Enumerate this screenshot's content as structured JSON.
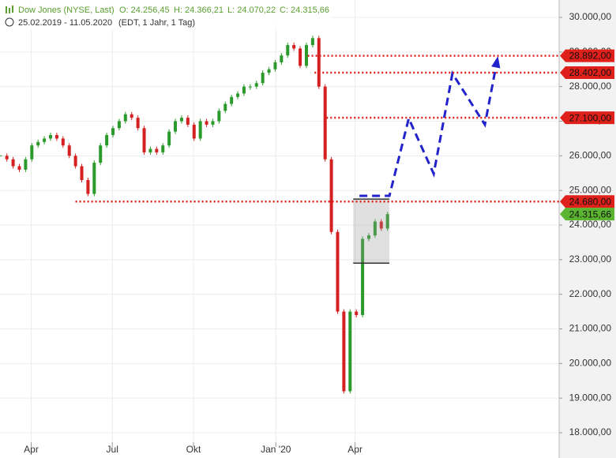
{
  "chart_data": {
    "type": "candlestick",
    "title": "Dow Jones (NYSE, Last)",
    "ohlc_text": [
      "O: 24.256,45",
      "H: 24.366,21",
      "L: 24.070,22",
      "C: 24.315,66"
    ],
    "subtitle": "25.02.2019 - 11.05.2020",
    "subtitle_note": "(EDT, 1 Jahr, 1 Tag)",
    "closes": [
      26000,
      25900,
      25700,
      25600,
      25900,
      26300,
      26400,
      26500,
      26600,
      26500,
      26300,
      26000,
      25700,
      25300,
      24900,
      25800,
      26300,
      26600,
      26800,
      27000,
      27200,
      27100,
      26800,
      26100,
      26200,
      26100,
      26300,
      26700,
      27000,
      27100,
      26900,
      26500,
      27000,
      26900,
      27000,
      27300,
      27500,
      27700,
      27800,
      28000,
      28000,
      28100,
      28400,
      28500,
      28700,
      28900,
      29200,
      29100,
      28600,
      29200,
      29400,
      28000,
      25900,
      23800,
      21500,
      19200,
      21500,
      21400,
      23600,
      23700,
      24100,
      23900,
      24316
    ],
    "up_color": "#2a9a2a",
    "down_color": "#d42020",
    "xlim": [
      -0.1,
      89.5
    ],
    "xticks": [
      {
        "value": 4.9,
        "label": "Apr"
      },
      {
        "value": 17.9,
        "label": "Jul"
      },
      {
        "value": 30.9,
        "label": "Okt"
      },
      {
        "value": 44.1,
        "label": "Jan '20"
      },
      {
        "value": 56.8,
        "label": "Apr"
      }
    ],
    "ylim": [
      18000,
      30000
    ],
    "yticks": [
      {
        "value": 18000,
        "label": "18.000,00"
      },
      {
        "value": 19000,
        "label": "19.000,00"
      },
      {
        "value": 20000,
        "label": "20.000,00"
      },
      {
        "value": 21000,
        "label": "21.000,00"
      },
      {
        "value": 22000,
        "label": "22.000,00"
      },
      {
        "value": 23000,
        "label": "23.000,00"
      },
      {
        "value": 24000,
        "label": "24.000,00"
      },
      {
        "value": 25000,
        "label": "25.000,00"
      },
      {
        "value": 26000,
        "label": "26.000,00"
      },
      {
        "value": 27000,
        "label": "27.000,00"
      },
      {
        "value": 28000,
        "label": "28.000,00"
      },
      {
        "value": 29000,
        "label": "29.000,00"
      },
      {
        "value": 30000,
        "label": "30.000,00"
      }
    ],
    "grid": true,
    "levels": [
      {
        "value": 28892,
        "label": "28.892,00",
        "x_start": 49.2
      },
      {
        "value": 28402,
        "label": "28.402,00",
        "x_start": 50.3
      },
      {
        "value": 27100,
        "label": "27.100,00",
        "x_start": 52.2
      },
      {
        "value": 24680,
        "label": "24.680,00",
        "x_start": 12.0
      }
    ],
    "level_color": "#e0201a",
    "last": {
      "value": 24315.66,
      "label": "24.315,66",
      "color": "#5cb531"
    },
    "range_box": {
      "x": [
        56.5,
        62.3
      ],
      "values": [
        24750,
        22900
      ]
    },
    "projection": {
      "x": [
        57.5,
        62.3,
        65.4,
        69.4,
        72.4,
        77.6,
        79.6
      ],
      "values": [
        24844,
        24844,
        27080,
        25480,
        28380,
        26900,
        28790
      ],
      "color": "#2222cc"
    }
  }
}
